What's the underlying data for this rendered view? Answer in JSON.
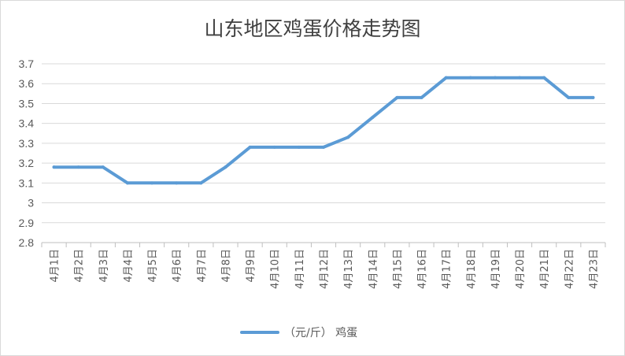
{
  "chart_data": {
    "type": "line",
    "title": "山东地区鸡蛋价格走势图",
    "categories": [
      "4月1日",
      "4月2日",
      "4月3日",
      "4月4日",
      "4月5日",
      "4月6日",
      "4月7日",
      "4月8日",
      "4月9日",
      "4月10日",
      "4月11日",
      "4月12日",
      "4月13日",
      "4月14日",
      "4月15日",
      "4月16日",
      "4月17日",
      "4月18日",
      "4月19日",
      "4月20日",
      "4月21日",
      "4月22日",
      "4月23日"
    ],
    "series": [
      {
        "name": "（元/斤） 鸡蛋",
        "color": "#5b9bd5",
        "values": [
          3.18,
          3.18,
          3.18,
          3.1,
          3.1,
          3.1,
          3.1,
          3.18,
          3.28,
          3.28,
          3.28,
          3.28,
          3.33,
          3.43,
          3.53,
          3.53,
          3.63,
          3.63,
          3.63,
          3.63,
          3.63,
          3.53,
          3.53
        ]
      }
    ],
    "ylim": [
      2.8,
      3.7
    ],
    "yticks": [
      "2.8",
      "2.9",
      "3",
      "3.1",
      "3.2",
      "3.3",
      "3.4",
      "3.5",
      "3.6",
      "3.7"
    ],
    "xlabel": "",
    "ylabel": "",
    "grid": true,
    "legend_position": "bottom"
  }
}
